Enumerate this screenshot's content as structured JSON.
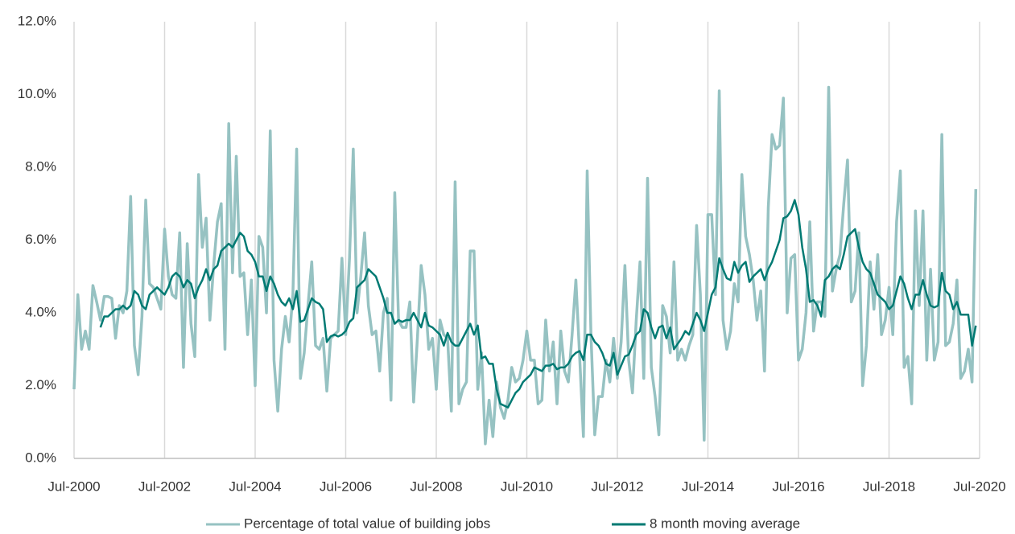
{
  "chart_data": {
    "type": "line",
    "x": [
      0,
      1,
      2,
      3,
      4,
      5,
      6,
      7,
      8,
      9,
      10,
      11,
      12,
      13,
      14,
      15,
      16,
      17,
      18,
      19,
      20,
      21,
      22,
      23,
      24,
      25,
      26,
      27,
      28,
      29,
      30,
      31,
      32,
      33,
      34,
      35,
      36,
      37,
      38,
      39,
      40,
      41,
      42,
      43,
      44,
      45,
      46,
      47,
      48,
      49,
      50,
      51,
      52,
      53,
      54,
      55,
      56,
      57,
      58,
      59,
      60,
      61,
      62,
      63,
      64,
      65,
      66,
      67,
      68,
      69,
      70,
      71,
      72,
      73,
      74,
      75,
      76,
      77,
      78,
      79,
      80,
      81,
      82,
      83,
      84,
      85,
      86,
      87,
      88,
      89,
      90,
      91,
      92,
      93,
      94,
      95,
      96,
      97,
      98,
      99,
      100,
      101,
      102,
      103,
      104,
      105,
      106,
      107,
      108,
      109,
      110,
      111,
      112,
      113,
      114,
      115,
      116,
      117,
      118,
      119,
      120,
      121,
      122,
      123,
      124,
      125,
      126,
      127,
      128,
      129,
      130,
      131,
      132,
      133,
      134,
      135,
      136,
      137,
      138,
      139,
      140,
      141,
      142,
      143,
      144,
      145,
      146,
      147,
      148,
      149,
      150,
      151,
      152,
      153,
      154,
      155,
      156,
      157,
      158,
      159,
      160,
      161,
      162,
      163,
      164,
      165,
      166,
      167,
      168,
      169,
      170,
      171,
      172,
      173,
      174,
      175,
      176,
      177,
      178,
      179,
      180,
      181,
      182,
      183,
      184,
      185,
      186,
      187,
      188,
      189,
      190,
      191,
      192,
      193,
      194,
      195,
      196,
      197,
      198,
      199,
      200,
      201,
      202,
      203,
      204,
      205,
      206,
      207,
      208,
      209,
      210,
      211,
      212,
      213,
      214,
      215,
      216,
      217,
      218,
      219,
      220,
      221,
      222,
      223,
      224,
      225,
      226,
      227,
      228,
      229,
      230,
      231,
      232,
      233,
      234,
      235,
      236,
      237,
      238,
      239
    ],
    "series": [
      {
        "name": "Percentage of total value of building jobs",
        "color": "#96c2c2",
        "values": [
          1.9,
          4.5,
          3.0,
          3.5,
          3.0,
          4.75,
          4.3,
          3.8,
          4.45,
          4.45,
          4.4,
          3.3,
          4.2,
          4.0,
          4.6,
          7.2,
          3.1,
          2.3,
          3.9,
          7.1,
          4.8,
          4.7,
          4.4,
          4.1,
          6.3,
          5.0,
          4.5,
          4.4,
          6.2,
          2.5,
          5.9,
          3.7,
          2.8,
          7.8,
          5.8,
          6.6,
          3.8,
          5.3,
          6.5,
          7.0,
          3.0,
          9.2,
          5.1,
          8.3,
          5.0,
          5.1,
          3.4,
          4.9,
          2.0,
          6.1,
          5.8,
          4.0,
          9.0,
          2.7,
          1.3,
          3.0,
          3.9,
          3.2,
          4.5,
          8.5,
          2.2,
          2.9,
          4.2,
          5.4,
          3.1,
          3.0,
          3.3,
          1.85,
          3.3,
          3.4,
          3.5,
          5.5,
          3.4,
          5.5,
          8.5,
          4.0,
          5.0,
          6.2,
          4.2,
          3.4,
          3.5,
          2.4,
          4.0,
          4.4,
          1.6,
          7.3,
          3.8,
          3.6,
          3.6,
          4.3,
          1.55,
          3.3,
          5.3,
          4.5,
          3.0,
          3.3,
          1.9,
          3.8,
          3.4,
          3.3,
          1.3,
          7.6,
          1.5,
          1.9,
          2.1,
          5.7,
          5.7,
          1.9,
          2.9,
          0.4,
          1.6,
          0.6,
          2.1,
          1.4,
          1.1,
          1.6,
          2.5,
          2.1,
          2.2,
          2.7,
          3.5,
          2.7,
          2.7,
          1.5,
          1.6,
          3.8,
          2.4,
          3.2,
          1.5,
          3.5,
          2.4,
          2.1,
          3.4,
          4.9,
          2.8,
          0.6,
          7.9,
          3.4,
          0.65,
          1.7,
          1.7,
          2.7,
          2.1,
          3.3,
          2.2,
          3.2,
          5.3,
          2.7,
          1.8,
          3.8,
          5.4,
          2.2,
          7.7,
          2.5,
          1.7,
          0.65,
          4.2,
          3.9,
          2.9,
          5.4,
          2.7,
          3.0,
          2.7,
          3.1,
          3.4,
          6.4,
          4.5,
          0.5,
          6.7,
          6.7,
          4.5,
          10.1,
          3.8,
          3.0,
          3.5,
          4.8,
          4.3,
          7.8,
          6.1,
          5.6,
          4.9,
          3.8,
          4.6,
          2.4,
          6.9,
          8.9,
          8.5,
          8.6,
          9.9,
          4.0,
          5.5,
          5.6,
          2.7,
          3.0,
          4.0,
          6.5,
          3.5,
          4.3,
          4.3,
          3.9,
          10.2,
          4.6,
          5.2,
          5.6,
          7.0,
          8.2,
          4.3,
          4.6,
          6.2,
          2.0,
          3.1,
          5.4,
          4.1,
          5.6,
          3.4,
          3.8,
          4.7,
          3.4,
          6.5,
          7.9,
          2.5,
          2.8,
          1.5,
          6.8,
          4.2,
          6.8,
          2.7,
          5.2,
          2.7,
          3.2,
          8.9,
          3.1,
          3.2,
          3.7,
          4.9,
          2.2,
          2.4,
          3.0,
          2.1,
          7.4
        ]
      },
      {
        "name": "8 month moving average",
        "color": "#007a73",
        "values": [
          null,
          null,
          null,
          null,
          null,
          null,
          null,
          3.6,
          3.9,
          3.9,
          4.0,
          4.1,
          4.1,
          4.2,
          4.1,
          4.2,
          4.6,
          4.5,
          4.2,
          4.1,
          4.5,
          4.6,
          4.7,
          4.6,
          4.5,
          4.7,
          5.0,
          5.1,
          5.0,
          4.7,
          4.9,
          4.8,
          4.4,
          4.7,
          4.9,
          5.2,
          4.9,
          5.2,
          5.3,
          5.7,
          5.8,
          5.9,
          5.8,
          6.0,
          6.2,
          6.1,
          5.7,
          5.6,
          5.4,
          5.0,
          5.0,
          4.6,
          5.0,
          4.8,
          4.5,
          4.3,
          4.2,
          4.4,
          4.1,
          4.6,
          3.75,
          3.8,
          4.1,
          4.4,
          4.3,
          4.25,
          4.1,
          3.2,
          3.35,
          3.4,
          3.35,
          3.4,
          3.5,
          3.75,
          3.85,
          4.7,
          4.8,
          4.9,
          5.2,
          5.1,
          5.0,
          4.7,
          4.4,
          4.0,
          4.0,
          3.7,
          3.8,
          3.75,
          3.8,
          3.8,
          4.0,
          3.8,
          3.6,
          4.0,
          3.65,
          3.6,
          3.5,
          3.4,
          3.1,
          3.45,
          3.2,
          3.1,
          3.1,
          3.3,
          3.5,
          3.7,
          3.4,
          3.65,
          2.75,
          2.8,
          2.6,
          2.6,
          1.9,
          1.5,
          1.45,
          1.4,
          1.6,
          1.8,
          1.9,
          2.1,
          2.2,
          2.3,
          2.5,
          2.45,
          2.4,
          2.55,
          2.55,
          2.6,
          2.45,
          2.5,
          2.5,
          2.6,
          2.8,
          2.9,
          2.95,
          2.7,
          3.4,
          3.4,
          3.2,
          3.1,
          2.9,
          2.6,
          2.55,
          2.9,
          2.3,
          2.55,
          2.8,
          2.85,
          3.1,
          3.4,
          3.5,
          4.1,
          4.0,
          3.6,
          3.3,
          3.6,
          3.65,
          3.3,
          3.6,
          3.0,
          3.15,
          3.3,
          3.5,
          3.4,
          3.7,
          4.0,
          3.8,
          3.5,
          4.0,
          4.5,
          4.7,
          5.5,
          5.2,
          4.95,
          4.9,
          5.4,
          5.1,
          5.3,
          5.4,
          4.85,
          5.0,
          5.1,
          5.2,
          4.9,
          5.2,
          5.4,
          5.7,
          6.0,
          6.6,
          6.65,
          6.8,
          7.1,
          6.7,
          5.8,
          5.2,
          4.3,
          4.35,
          4.2,
          3.9,
          4.9,
          5.0,
          5.2,
          5.3,
          5.2,
          5.6,
          6.1,
          6.2,
          6.3,
          5.8,
          5.4,
          5.2,
          5.1,
          4.8,
          4.5,
          4.4,
          4.3,
          4.1,
          4.2,
          4.6,
          5.0,
          4.8,
          4.4,
          4.1,
          4.5,
          4.5,
          4.9,
          4.5,
          4.2,
          4.15,
          4.2,
          5.1,
          4.6,
          4.5,
          4.1,
          4.3,
          3.95,
          3.95,
          3.95,
          3.1,
          3.65
        ]
      }
    ],
    "xlim": [
      0,
      240
    ],
    "xticks": [
      {
        "value": 0,
        "label": "Jul-2000"
      },
      {
        "value": 24,
        "label": "Jul-2002"
      },
      {
        "value": 48,
        "label": "Jul-2004"
      },
      {
        "value": 72,
        "label": "Jul-2006"
      },
      {
        "value": 96,
        "label": "Jul-2008"
      },
      {
        "value": 120,
        "label": "Jul-2010"
      },
      {
        "value": 144,
        "label": "Jul-2012"
      },
      {
        "value": 168,
        "label": "Jul-2014"
      },
      {
        "value": 192,
        "label": "Jul-2016"
      },
      {
        "value": 216,
        "label": "Jul-2018"
      },
      {
        "value": 240,
        "label": "Jul-2020"
      }
    ],
    "ylim": [
      0,
      12
    ],
    "yticks": [
      {
        "value": 0,
        "label": "0.0%"
      },
      {
        "value": 2,
        "label": "2.0%"
      },
      {
        "value": 4,
        "label": "4.0%"
      },
      {
        "value": 6,
        "label": "6.0%"
      },
      {
        "value": 8,
        "label": "8.0%"
      },
      {
        "value": 10,
        "label": "10.0%"
      },
      {
        "value": 12,
        "label": "12.0%"
      }
    ],
    "grid": "x",
    "legend": "bottom"
  }
}
